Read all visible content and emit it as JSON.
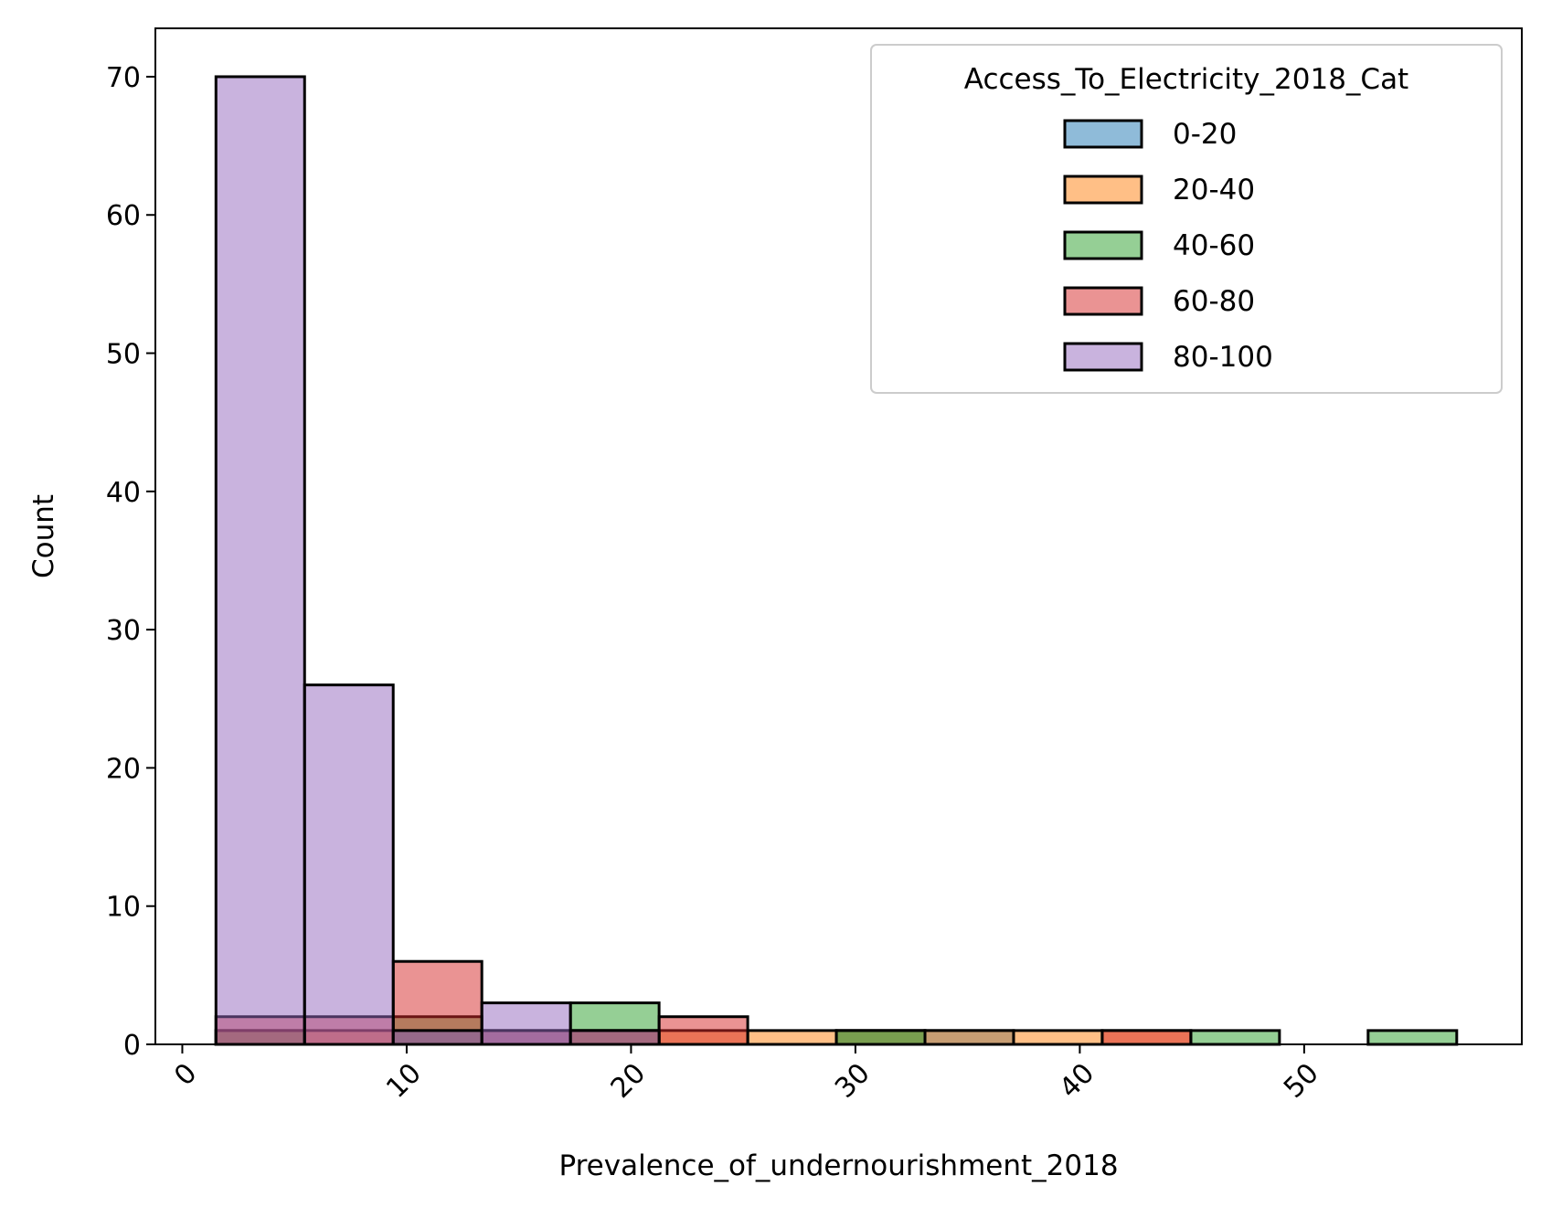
{
  "chart_data": {
    "type": "bar",
    "xlabel": "Prevalence_of_undernourishment_2018",
    "ylabel": "Count",
    "xlim": [
      -1.2,
      59.7
    ],
    "ylim": [
      0,
      73.5
    ],
    "xticks": [
      0,
      10,
      20,
      30,
      40,
      50
    ],
    "yticks": [
      0,
      10,
      20,
      30,
      40,
      50,
      60,
      70
    ],
    "grid": false,
    "legend": {
      "title": "Access_To_Electricity_2018_Cat",
      "position": "top-right"
    },
    "bin_edges": [
      1.5,
      5.45,
      9.4,
      13.35,
      17.3,
      21.25,
      25.2,
      29.15,
      33.1,
      37.05,
      41.0,
      44.95,
      48.9,
      52.85,
      56.8
    ],
    "series": [
      {
        "name": "0-20",
        "color": "#1f77b4",
        "values": [
          0,
          0,
          1,
          1,
          0,
          0,
          0,
          1,
          1,
          0,
          0,
          0,
          0,
          0
        ]
      },
      {
        "name": "20-40",
        "color": "#ff7f0e",
        "values": [
          1,
          1,
          0,
          0,
          1,
          1,
          1,
          1,
          1,
          1,
          1,
          0,
          0,
          0
        ]
      },
      {
        "name": "40-60",
        "color": "#2ca02c",
        "values": [
          1,
          0,
          2,
          0,
          3,
          0,
          0,
          1,
          0,
          0,
          0,
          1,
          0,
          1
        ]
      },
      {
        "name": "60-80",
        "color": "#d62728",
        "values": [
          2,
          2,
          6,
          1,
          1,
          2,
          0,
          0,
          0,
          0,
          1,
          0,
          0,
          0
        ]
      },
      {
        "name": "80-100",
        "color": "#9467bd",
        "values": [
          70,
          26,
          1,
          3,
          1,
          0,
          0,
          0,
          0,
          0,
          0,
          0,
          0,
          0
        ]
      }
    ]
  }
}
